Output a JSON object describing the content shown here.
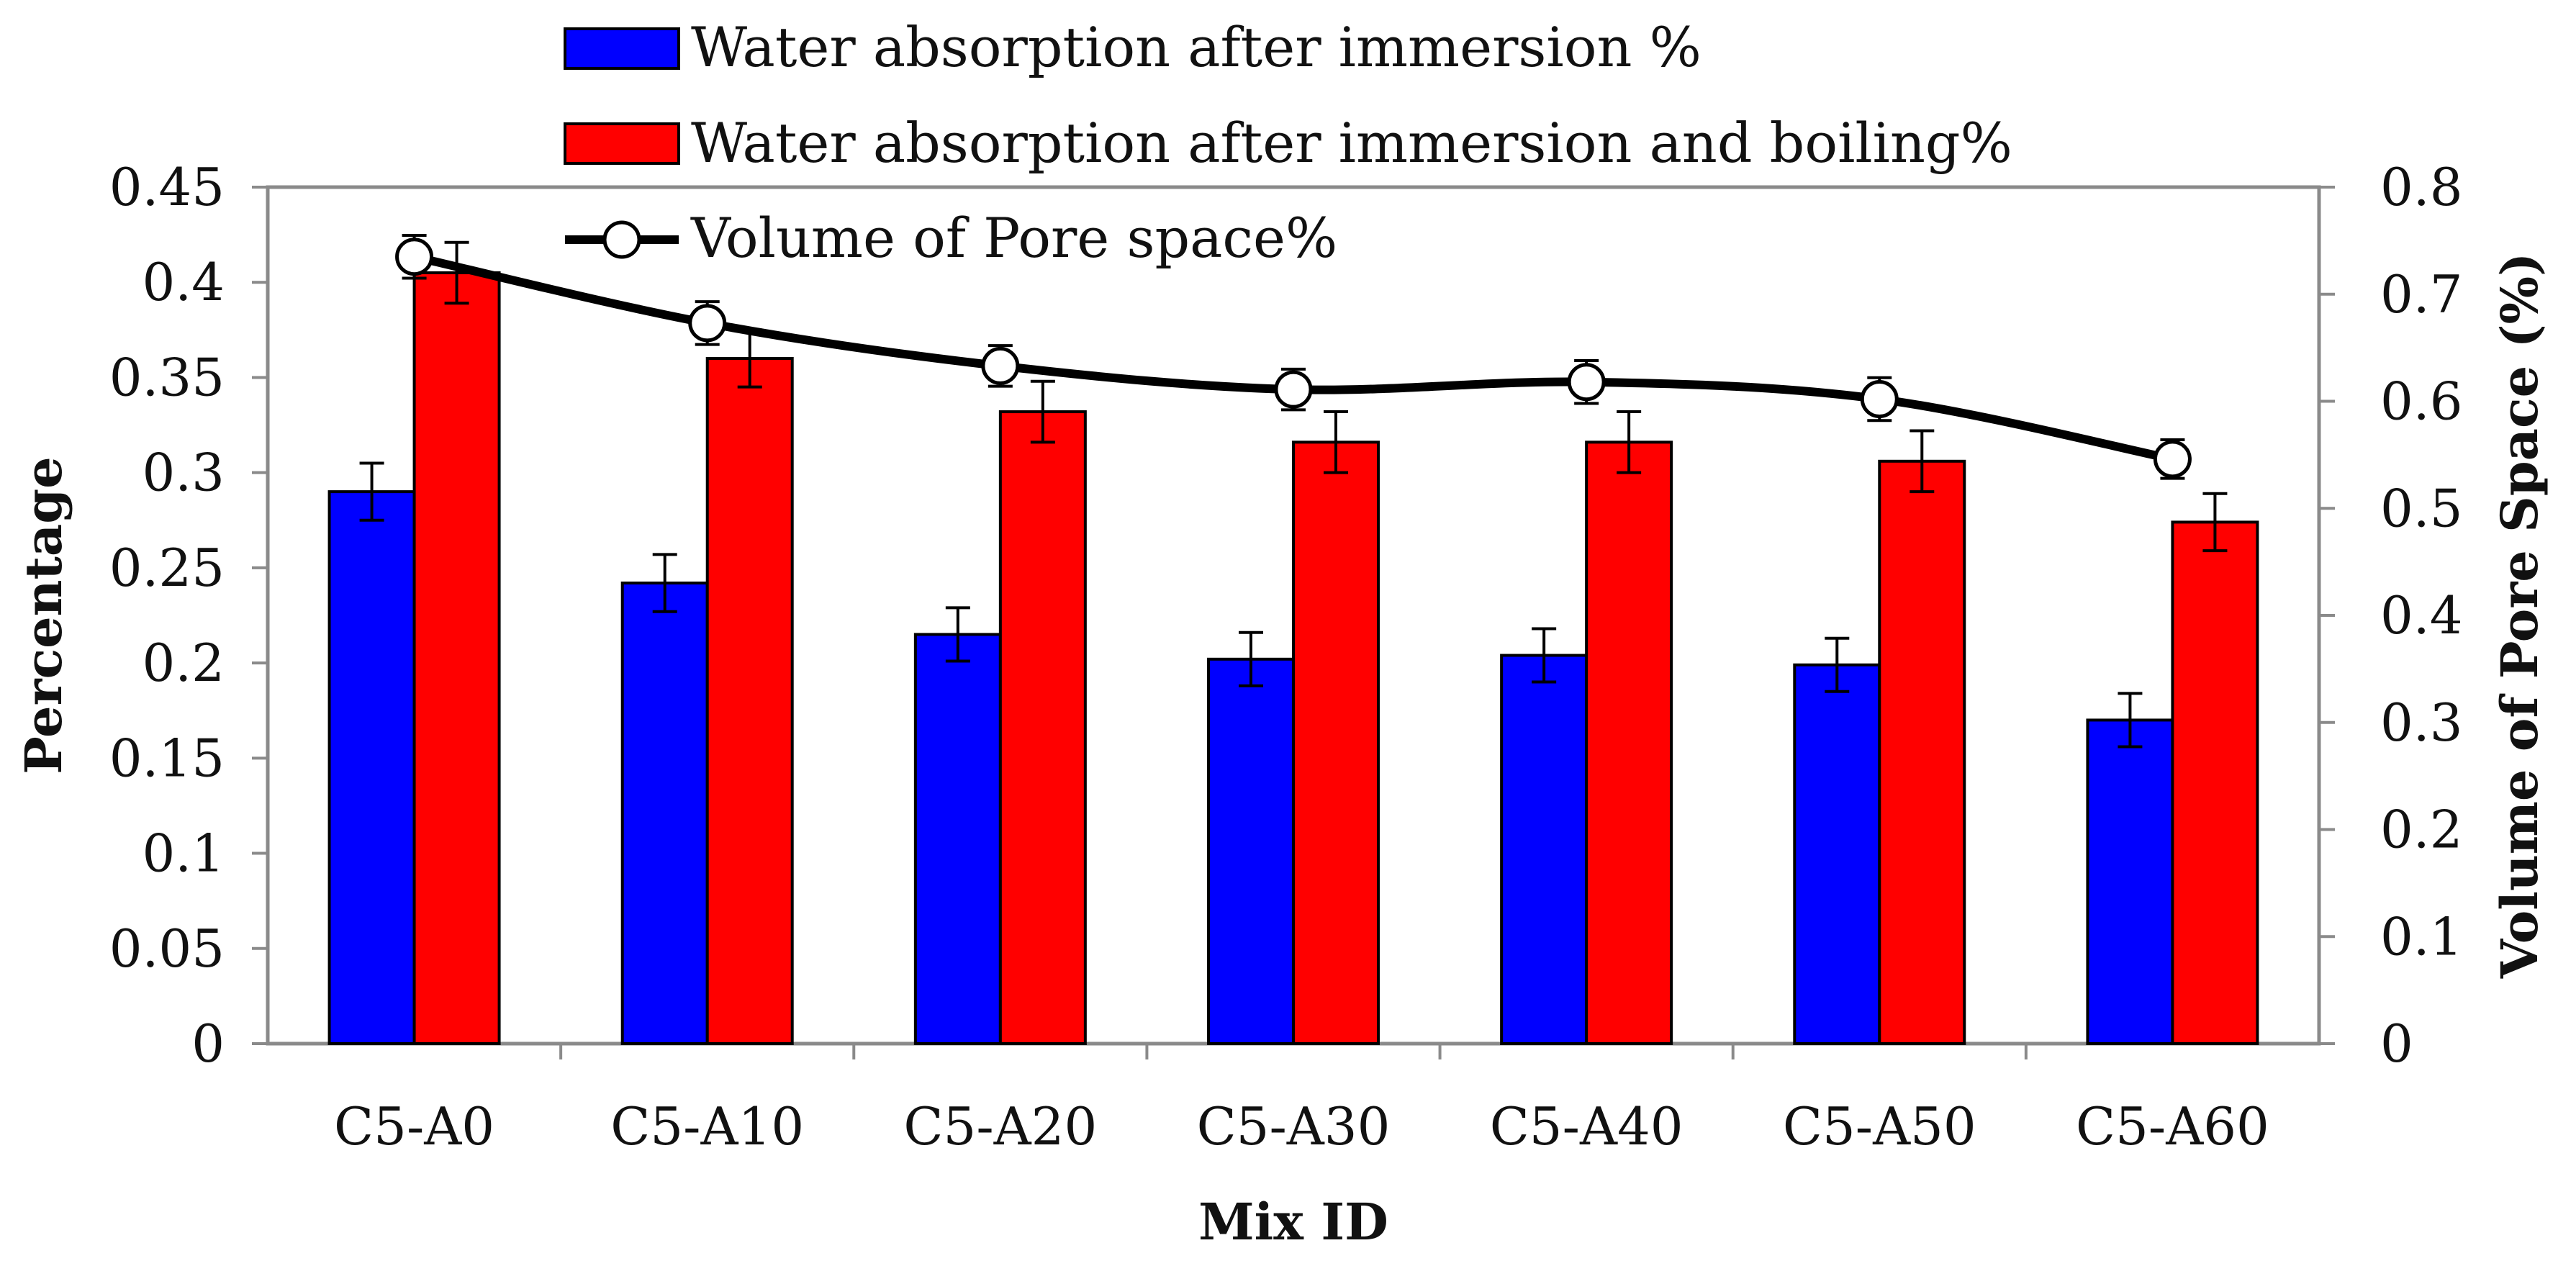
{
  "chart_data": {
    "type": "bar",
    "categories": [
      "C5-A0",
      "C5-A10",
      "C5-A20",
      "C5-A30",
      "C5-A40",
      "C5-A50",
      "C5-A60"
    ],
    "series": [
      {
        "name": "Water absorption after immersion %",
        "kind": "bar",
        "axis": "left",
        "color": "#0000ff",
        "values": [
          0.29,
          0.242,
          0.215,
          0.202,
          0.204,
          0.199,
          0.17
        ],
        "errors": [
          0.015,
          0.015,
          0.014,
          0.014,
          0.014,
          0.014,
          0.014
        ]
      },
      {
        "name": "Water absorption after immersion and boiling%",
        "kind": "bar",
        "axis": "left",
        "color": "#ff0000",
        "values": [
          0.405,
          0.36,
          0.332,
          0.316,
          0.316,
          0.306,
          0.274
        ],
        "errors": [
          0.016,
          0.015,
          0.016,
          0.016,
          0.016,
          0.016,
          0.015
        ]
      },
      {
        "name": "Volume of Pore space%",
        "kind": "line",
        "axis": "right",
        "color": "#000000",
        "values": [
          0.735,
          0.673,
          0.633,
          0.611,
          0.618,
          0.602,
          0.546
        ],
        "errors": [
          0.02,
          0.02,
          0.019,
          0.019,
          0.02,
          0.02,
          0.018
        ]
      }
    ],
    "xlabel": "Mix ID",
    "ylabel": "Percentage",
    "y2label": "Volume of Pore Space (%)",
    "ylim": [
      0,
      0.45
    ],
    "y2lim": [
      0,
      0.8
    ],
    "yticks": [
      "0",
      "0.05",
      "0.1",
      "0.15",
      "0.2",
      "0.25",
      "0.3",
      "0.35",
      "0.4",
      "0.45"
    ],
    "y2ticks": [
      "0",
      "0.1",
      "0.2",
      "0.3",
      "0.4",
      "0.5",
      "0.6",
      "0.7",
      "0.8"
    ],
    "grid": false,
    "legend_position": "top-left"
  }
}
